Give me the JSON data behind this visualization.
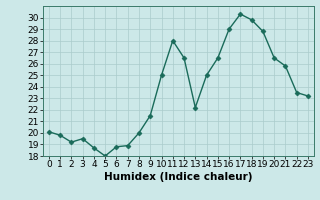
{
  "xlabel": "Humidex (Indice chaleur)",
  "ylabel": "",
  "x_values": [
    0,
    1,
    2,
    3,
    4,
    5,
    6,
    7,
    8,
    9,
    10,
    11,
    12,
    13,
    14,
    15,
    16,
    17,
    18,
    19,
    20,
    21,
    22,
    23
  ],
  "y_values": [
    20.1,
    19.8,
    19.2,
    19.5,
    18.7,
    18.0,
    18.8,
    18.9,
    20.0,
    21.5,
    25.0,
    28.0,
    26.5,
    22.2,
    25.0,
    26.5,
    29.0,
    30.3,
    29.8,
    28.8,
    26.5,
    25.8,
    23.5,
    23.2
  ],
  "line_color": "#1a6b5a",
  "marker": "D",
  "marker_size": 2.5,
  "bg_color": "#cce8e8",
  "grid_color": "#aacccc",
  "ylim": [
    18,
    31
  ],
  "xlim": [
    -0.5,
    23.5
  ],
  "yticks": [
    18,
    19,
    20,
    21,
    22,
    23,
    24,
    25,
    26,
    27,
    28,
    29,
    30
  ],
  "xticks": [
    0,
    1,
    2,
    3,
    4,
    5,
    6,
    7,
    8,
    9,
    10,
    11,
    12,
    13,
    14,
    15,
    16,
    17,
    18,
    19,
    20,
    21,
    22,
    23
  ],
  "tick_fontsize": 6.5,
  "xlabel_fontsize": 7.5
}
